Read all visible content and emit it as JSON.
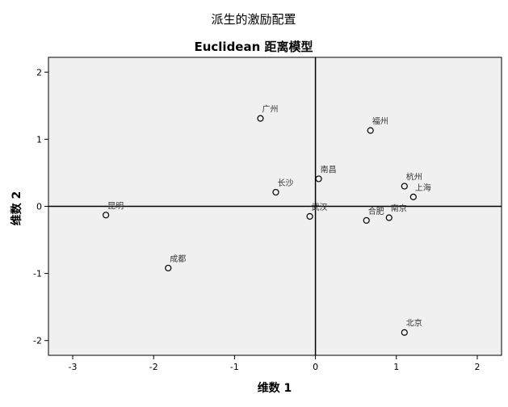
{
  "chart_data": {
    "type": "scatter",
    "title": "派生的激励配置",
    "subtitle": "Euclidean 距离模型",
    "xlabel": "维数 1",
    "ylabel": "维数 2",
    "xlim": [
      -3.3,
      2.3
    ],
    "ylim": [
      -2.22,
      2.22
    ],
    "xticks": [
      -3,
      -2,
      -1,
      0,
      1,
      2
    ],
    "yticks": [
      -2,
      -1,
      0,
      1,
      2
    ],
    "grid": false,
    "reference_lines": {
      "x": 0,
      "y": 0
    },
    "colors": {
      "plot_background": "#f0f0f0",
      "marker": "#000000",
      "label": "#333333"
    },
    "points": [
      {
        "label": "广州",
        "x": -0.68,
        "y": 1.31
      },
      {
        "label": "福州",
        "x": 0.68,
        "y": 1.13
      },
      {
        "label": "南昌",
        "x": 0.04,
        "y": 0.41
      },
      {
        "label": "长沙",
        "x": -0.49,
        "y": 0.21
      },
      {
        "label": "杭州",
        "x": 1.1,
        "y": 0.3
      },
      {
        "label": "上海",
        "x": 1.21,
        "y": 0.14
      },
      {
        "label": "昆明",
        "x": -2.59,
        "y": -0.13
      },
      {
        "label": "武汉",
        "x": -0.07,
        "y": -0.15
      },
      {
        "label": "合肥",
        "x": 0.63,
        "y": -0.21
      },
      {
        "label": "南京",
        "x": 0.91,
        "y": -0.17
      },
      {
        "label": "成都",
        "x": -1.82,
        "y": -0.92
      },
      {
        "label": "北京",
        "x": 1.1,
        "y": -1.88
      }
    ]
  }
}
